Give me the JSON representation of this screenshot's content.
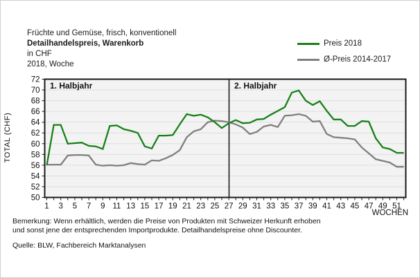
{
  "title": {
    "line1": "Früchte und Gemüse, frisch, konventionell",
    "line2": "Detailhandelspreis, Warenkorb",
    "line3": "in CHF",
    "line4": "2018, Woche"
  },
  "legend": [
    {
      "label": "Preis 2018",
      "color": "#178017"
    },
    {
      "label": "Ø-Preis 2014-2017",
      "color": "#7f7f7f"
    }
  ],
  "chart_data": {
    "type": "line",
    "y_label": "TOTAL (CHF)",
    "x_label": "WOCHEN",
    "ylim": [
      50,
      72
    ],
    "y_ticks": [
      50,
      52,
      54,
      56,
      58,
      60,
      62,
      64,
      66,
      68,
      70,
      72
    ],
    "x_tick_labels": [
      1,
      3,
      5,
      7,
      9,
      11,
      13,
      15,
      17,
      19,
      21,
      23,
      25,
      27,
      29,
      31,
      33,
      35,
      37,
      39,
      41,
      43,
      45,
      47,
      49,
      51
    ],
    "weeks": [
      1,
      2,
      3,
      4,
      5,
      6,
      7,
      8,
      9,
      10,
      11,
      12,
      13,
      14,
      15,
      16,
      17,
      18,
      19,
      20,
      21,
      22,
      23,
      24,
      25,
      26,
      27,
      28,
      29,
      30,
      31,
      32,
      33,
      34,
      35,
      36,
      37,
      38,
      39,
      40,
      41,
      42,
      43,
      44,
      45,
      46,
      47,
      48,
      49,
      50,
      51,
      52
    ],
    "annotations": [
      "1. Halbjahr",
      "2. Halbjahr"
    ],
    "divider_week": 26.5,
    "grid": true,
    "plot_bg": "#f3f3f3",
    "grid_color": "#dedede",
    "axis_color": "#1a1a1a",
    "series": [
      {
        "name": "Preis 2018",
        "color": "#178017",
        "values": [
          56.0,
          63.5,
          63.5,
          60.0,
          60.1,
          60.2,
          59.6,
          59.5,
          59.0,
          63.3,
          63.4,
          62.7,
          62.4,
          62.0,
          59.5,
          59.1,
          61.5,
          61.5,
          61.6,
          63.6,
          65.5,
          65.2,
          65.4,
          64.9,
          64.0,
          62.9,
          63.8,
          64.4,
          63.8,
          63.9,
          64.5,
          64.6,
          65.4,
          66.1,
          66.8,
          69.5,
          69.9,
          68.0,
          67.2,
          67.9,
          66.1,
          64.5,
          64.5,
          63.3,
          63.3,
          64.2,
          64.1,
          61.0,
          59.3,
          59.0,
          58.3,
          58.3
        ]
      },
      {
        "name": "Ø-Preis 2014-2017",
        "color": "#7f7f7f",
        "values": [
          56.1,
          56.1,
          56.1,
          57.8,
          57.9,
          57.9,
          57.8,
          56.1,
          55.9,
          56.0,
          55.9,
          56.0,
          56.4,
          56.2,
          56.1,
          56.9,
          56.8,
          57.3,
          57.9,
          58.8,
          61.2,
          62.3,
          62.7,
          64.0,
          64.3,
          64.2,
          64.0,
          63.6,
          63.0,
          61.8,
          62.2,
          63.2,
          63.5,
          63.1,
          65.2,
          65.3,
          65.5,
          65.2,
          64.1,
          64.2,
          61.8,
          61.2,
          61.1,
          61.0,
          60.8,
          59.3,
          58.2,
          57.1,
          56.8,
          56.5,
          55.7,
          55.7
        ]
      }
    ]
  },
  "footer": {
    "bemerkung_line1": "Bemerkung: Wenn erhältlich, werden die Preise von Produkten mit Schweizer Herkunft erhoben",
    "bemerkung_line2": "und sonst jene der entsprechenden Importprodukte. Detailhandelspreise ohne Discounter.",
    "quelle": "Quelle: BLW, Fachbereich Marktanalysen"
  }
}
